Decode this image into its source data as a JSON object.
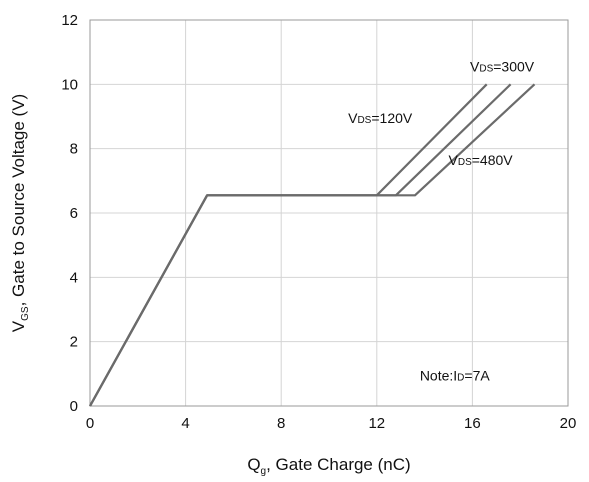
{
  "chart_data": {
    "type": "line",
    "xlabel": {
      "main": "Q",
      "sub": "g",
      "rest": ", Gate Charge (nC)"
    },
    "ylabel": {
      "main": "V",
      "sub": "GS",
      "rest": ", Gate to Source Voltage (V)"
    },
    "xlim": [
      0,
      20
    ],
    "ylim": [
      0,
      12
    ],
    "x_ticks": [
      0,
      4,
      8,
      12,
      16,
      20
    ],
    "y_ticks": [
      0,
      2,
      4,
      6,
      8,
      10,
      12
    ],
    "grid": true,
    "line_color": "#6b6b6b",
    "series": [
      {
        "points": [
          [
            0,
            0
          ],
          [
            4.9,
            6.55
          ],
          [
            12.0,
            6.55
          ],
          [
            16.6,
            10.0
          ]
        ]
      },
      {
        "points": [
          [
            0,
            0
          ],
          [
            4.9,
            6.55
          ],
          [
            12.8,
            6.55
          ],
          [
            17.6,
            10.0
          ]
        ]
      },
      {
        "points": [
          [
            0,
            0
          ],
          [
            4.9,
            6.55
          ],
          [
            13.6,
            6.55
          ],
          [
            18.6,
            10.0
          ]
        ]
      }
    ],
    "labels": [
      {
        "main": "V",
        "sub": "DS",
        "rest": "=300V",
        "x": 15.9,
        "y": 10.4
      },
      {
        "main": "V",
        "sub": "DS",
        "rest": "=120V",
        "x": 10.8,
        "y": 8.8
      },
      {
        "main": "V",
        "sub": "DS",
        "rest": "=480V",
        "x": 15.0,
        "y": 7.5
      }
    ],
    "note": {
      "main": "Note:I",
      "sub": "D",
      "rest": "=7A",
      "x": 13.8,
      "y": 0.8
    }
  }
}
